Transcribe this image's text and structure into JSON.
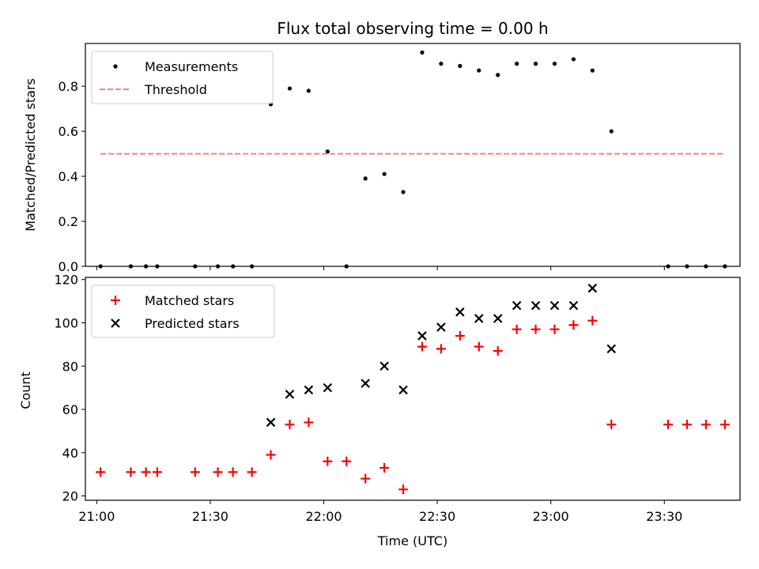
{
  "title": "Flux total observing time = 0.00 h",
  "colors": {
    "threshold": "#ff7f7f",
    "matched": "#ff0000",
    "predicted": "#000000",
    "measurement": "#000000"
  },
  "chart_data": [
    {
      "type": "scatter",
      "ylabel": "Matched/Predicted stars",
      "ylim": [
        0,
        0.99
      ],
      "yticks": [
        "0.0",
        "0.2",
        "0.4",
        "0.6",
        "0.8"
      ],
      "xlim": [
        "20:57",
        "23:50"
      ],
      "legend_position": "top-left",
      "legend": [
        "Measurements",
        "Threshold"
      ],
      "series": [
        {
          "name": "Measurements",
          "marker": "dot",
          "x": [
            "21:01",
            "21:09",
            "21:13",
            "21:16",
            "21:26",
            "21:32",
            "21:36",
            "21:41",
            "21:46",
            "21:51",
            "21:56",
            "22:01",
            "22:06",
            "22:11",
            "22:16",
            "22:21",
            "22:26",
            "22:31",
            "22:36",
            "22:41",
            "22:46",
            "22:51",
            "22:56",
            "23:01",
            "23:06",
            "23:11",
            "23:16",
            "23:31",
            "23:36",
            "23:41",
            "23:46"
          ],
          "y": [
            0,
            0,
            0,
            0,
            0,
            0,
            0,
            0,
            0.72,
            0.79,
            0.78,
            0.51,
            0,
            0.39,
            0.41,
            0.33,
            0.95,
            0.9,
            0.89,
            0.87,
            0.85,
            0.9,
            0.9,
            0.9,
            0.92,
            0.87,
            0.6,
            0,
            0,
            0,
            0
          ]
        },
        {
          "name": "Threshold",
          "style": "dashed",
          "x": [
            "21:01",
            "23:46"
          ],
          "y": [
            0.5,
            0.5
          ]
        }
      ]
    },
    {
      "type": "scatter",
      "xlabel": "Time (UTC)",
      "ylabel": "Count",
      "ylim": [
        18,
        121
      ],
      "yticks": [
        "20",
        "40",
        "60",
        "80",
        "100",
        "120"
      ],
      "xlim": [
        "20:57",
        "23:50"
      ],
      "xticks": [
        "21:00",
        "21:30",
        "22:00",
        "22:30",
        "23:00",
        "23:30"
      ],
      "legend_position": "top-left",
      "legend": [
        "Matched stars",
        "Predicted stars"
      ],
      "series": [
        {
          "name": "Matched stars",
          "marker": "plus",
          "x": [
            "21:01",
            "21:09",
            "21:13",
            "21:16",
            "21:26",
            "21:32",
            "21:36",
            "21:41",
            "21:46",
            "21:51",
            "21:56",
            "22:01",
            "22:06",
            "22:11",
            "22:16",
            "22:21",
            "22:26",
            "22:31",
            "22:36",
            "22:41",
            "22:46",
            "22:51",
            "22:56",
            "23:01",
            "23:06",
            "23:11",
            "23:16",
            "23:31",
            "23:36",
            "23:41",
            "23:46"
          ],
          "y": [
            31,
            31,
            31,
            31,
            31,
            31,
            31,
            31,
            39,
            53,
            54,
            36,
            36,
            28,
            33,
            23,
            89,
            88,
            94,
            89,
            87,
            97,
            97,
            97,
            99,
            101,
            53,
            53,
            53,
            53,
            53
          ]
        },
        {
          "name": "Predicted stars",
          "marker": "x",
          "x": [
            "21:46",
            "21:51",
            "21:56",
            "22:01",
            "22:11",
            "22:16",
            "22:21",
            "22:26",
            "22:31",
            "22:36",
            "22:41",
            "22:46",
            "22:51",
            "22:56",
            "23:01",
            "23:06",
            "23:11",
            "23:16"
          ],
          "y": [
            54,
            67,
            69,
            70,
            72,
            80,
            69,
            94,
            98,
            105,
            102,
            102,
            108,
            108,
            108,
            108,
            116,
            88
          ]
        }
      ]
    }
  ]
}
